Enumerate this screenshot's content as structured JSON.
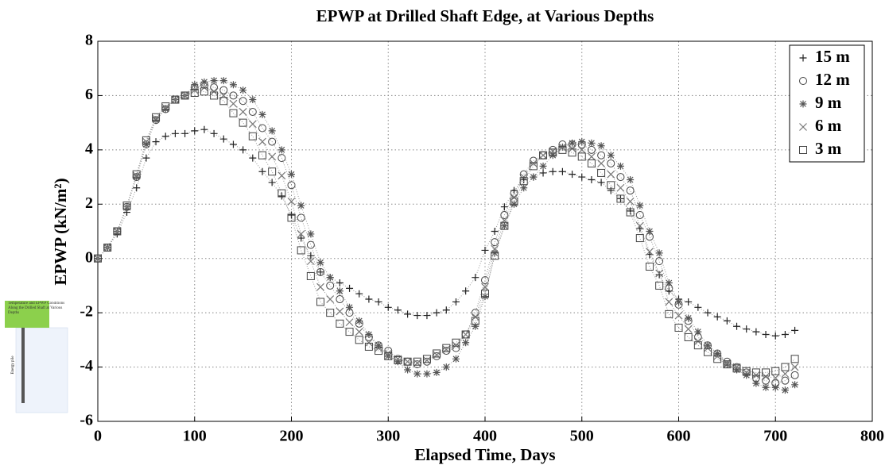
{
  "chart_data": {
    "type": "scatter",
    "title": "EPWP at Drilled Shaft Edge, at Various Depths",
    "xlabel": "Elapsed Time, Days",
    "ylabel": "EPWP (kN/m²)",
    "xlim": [
      0,
      800
    ],
    "xticks": [
      0,
      100,
      200,
      300,
      400,
      500,
      600,
      700,
      800
    ],
    "ylim": [
      -6,
      8
    ],
    "yticks": [
      -6,
      -4,
      -2,
      0,
      2,
      4,
      6,
      8
    ],
    "grid": true,
    "legend": "northeast",
    "x": [
      0,
      10,
      20,
      30,
      40,
      50,
      60,
      70,
      80,
      90,
      100,
      110,
      120,
      130,
      140,
      150,
      160,
      170,
      180,
      190,
      200,
      210,
      220,
      230,
      240,
      250,
      260,
      270,
      280,
      290,
      300,
      310,
      320,
      330,
      340,
      350,
      360,
      370,
      380,
      390,
      400,
      410,
      420,
      430,
      440,
      450,
      460,
      470,
      480,
      490,
      500,
      510,
      520,
      530,
      540,
      550,
      560,
      570,
      580,
      590,
      600,
      610,
      620,
      630,
      640,
      650,
      660,
      670,
      680,
      690,
      700,
      710,
      720
    ],
    "series": [
      {
        "name": "15 m",
        "marker": "plus",
        "color": "#222222",
        "values": [
          0,
          0.4,
          0.9,
          1.7,
          2.6,
          3.7,
          4.3,
          4.5,
          4.6,
          4.6,
          4.7,
          4.75,
          4.6,
          4.4,
          4.2,
          4.0,
          3.7,
          3.2,
          2.8,
          2.3,
          1.6,
          0.75,
          0.1,
          -0.5,
          -0.7,
          -0.9,
          -1.1,
          -1.3,
          -1.5,
          -1.6,
          -1.8,
          -1.9,
          -2.05,
          -2.1,
          -2.1,
          -2.0,
          -1.9,
          -1.6,
          -1.2,
          -0.7,
          0.3,
          1.0,
          1.9,
          2.5,
          2.9,
          3.0,
          3.15,
          3.2,
          3.2,
          3.1,
          3.0,
          2.9,
          2.8,
          2.5,
          2.2,
          1.75,
          1.1,
          0.15,
          -0.6,
          -1.2,
          -1.5,
          -1.6,
          -1.8,
          -2.0,
          -2.15,
          -2.3,
          -2.5,
          -2.6,
          -2.7,
          -2.8,
          -2.85,
          -2.8,
          -2.65
        ]
      },
      {
        "name": "12 m",
        "marker": "circle",
        "color": "#444444",
        "values": [
          0,
          0.4,
          1.0,
          1.9,
          3.0,
          4.2,
          5.1,
          5.5,
          5.85,
          6.0,
          6.3,
          6.4,
          6.3,
          6.2,
          6.0,
          5.8,
          5.4,
          4.8,
          4.3,
          3.7,
          2.7,
          1.5,
          0.5,
          -0.5,
          -1.0,
          -1.5,
          -2.0,
          -2.4,
          -2.9,
          -3.2,
          -3.4,
          -3.7,
          -3.8,
          -3.9,
          -3.8,
          -3.6,
          -3.4,
          -3.3,
          -2.8,
          -2.0,
          -0.8,
          0.6,
          1.6,
          2.4,
          3.1,
          3.6,
          3.8,
          4.0,
          4.2,
          4.2,
          4.2,
          4.0,
          3.8,
          3.5,
          3.0,
          2.5,
          1.6,
          0.8,
          -0.1,
          -1.1,
          -1.7,
          -2.3,
          -2.9,
          -3.2,
          -3.5,
          -3.8,
          -4.0,
          -4.2,
          -4.4,
          -4.5,
          -4.6,
          -4.5,
          -4.3
        ]
      },
      {
        "name": "9 m",
        "marker": "star",
        "color": "#555555",
        "values": [
          0,
          0.4,
          1.0,
          1.9,
          3.0,
          4.2,
          5.1,
          5.5,
          5.85,
          6.0,
          6.4,
          6.5,
          6.55,
          6.55,
          6.4,
          6.2,
          5.85,
          5.3,
          4.7,
          4.0,
          3.1,
          1.95,
          0.9,
          -0.15,
          -0.7,
          -1.2,
          -1.8,
          -2.3,
          -2.8,
          -3.2,
          -3.6,
          -3.8,
          -4.1,
          -4.25,
          -4.25,
          -4.2,
          -4.0,
          -3.7,
          -3.1,
          -2.5,
          -1.4,
          0.2,
          1.2,
          2.0,
          2.6,
          3.0,
          3.4,
          3.8,
          4.1,
          4.25,
          4.3,
          4.25,
          4.15,
          3.8,
          3.4,
          2.9,
          1.95,
          1.0,
          0.2,
          -0.9,
          -1.6,
          -2.2,
          -2.7,
          -3.2,
          -3.5,
          -3.9,
          -4.1,
          -4.3,
          -4.6,
          -4.75,
          -4.75,
          -4.85,
          -4.65
        ]
      },
      {
        "name": "6 m",
        "marker": "cross",
        "color": "#777777",
        "values": [
          0,
          0.4,
          1.0,
          1.9,
          3.05,
          4.3,
          5.15,
          5.55,
          5.85,
          6.0,
          6.2,
          6.3,
          6.15,
          6.0,
          5.7,
          5.4,
          4.95,
          4.3,
          3.75,
          3.05,
          2.1,
          0.9,
          -0.1,
          -1.05,
          -1.5,
          -1.95,
          -2.35,
          -2.7,
          -3.1,
          -3.3,
          -3.5,
          -3.7,
          -3.8,
          -3.85,
          -3.75,
          -3.55,
          -3.35,
          -3.2,
          -2.8,
          -2.15,
          -1.05,
          0.35,
          1.4,
          2.25,
          3.0,
          3.5,
          3.8,
          3.95,
          4.1,
          4.05,
          4.0,
          3.75,
          3.5,
          3.1,
          2.6,
          2.1,
          1.2,
          0.25,
          -0.55,
          -1.6,
          -2.1,
          -2.6,
          -3.05,
          -3.3,
          -3.6,
          -3.85,
          -4.0,
          -4.2,
          -4.3,
          -4.35,
          -4.4,
          -4.25,
          -4.0
        ]
      },
      {
        "name": "3 m",
        "marker": "square",
        "color": "#444444",
        "values": [
          0,
          0.4,
          1.0,
          1.95,
          3.1,
          4.35,
          5.2,
          5.6,
          5.85,
          6.0,
          6.1,
          6.15,
          6.0,
          5.8,
          5.35,
          5.0,
          4.5,
          3.8,
          3.2,
          2.4,
          1.5,
          0.3,
          -0.65,
          -1.6,
          -2.0,
          -2.4,
          -2.7,
          -3.0,
          -3.25,
          -3.4,
          -3.6,
          -3.75,
          -3.8,
          -3.8,
          -3.7,
          -3.5,
          -3.3,
          -3.1,
          -2.8,
          -2.3,
          -1.3,
          0.1,
          1.2,
          2.1,
          2.85,
          3.4,
          3.8,
          3.9,
          4.0,
          3.9,
          3.75,
          3.5,
          3.15,
          2.7,
          2.2,
          1.7,
          0.75,
          -0.3,
          -1.0,
          -2.05,
          -2.55,
          -2.9,
          -3.2,
          -3.45,
          -3.7,
          -3.9,
          -4.05,
          -4.15,
          -4.2,
          -4.2,
          -4.15,
          -4.0,
          -3.7
        ]
      }
    ]
  },
  "inset": {
    "caption": "Temperature and EPWP Conditions Along the Drilled Shaft at Various Depths",
    "label": "Energy pile"
  }
}
